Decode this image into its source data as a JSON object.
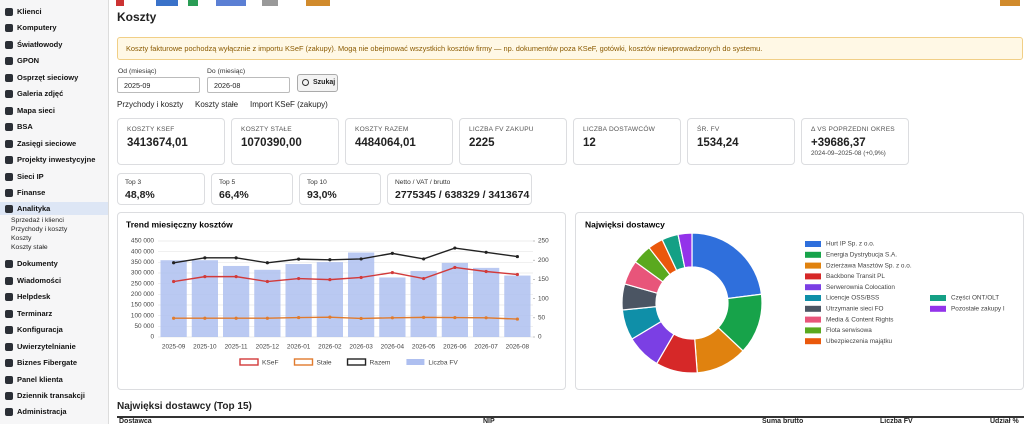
{
  "sidebar": {
    "items": [
      {
        "label": "Klienci"
      },
      {
        "label": "Komputery"
      },
      {
        "label": "Światłowody"
      },
      {
        "label": "GPON"
      },
      {
        "label": "Osprzęt sieciowy"
      },
      {
        "label": "Galeria zdjęć"
      },
      {
        "label": "Mapa sieci"
      },
      {
        "label": "BSA"
      },
      {
        "label": "Zasięgi sieciowe"
      },
      {
        "label": "Projekty inwestycyjne"
      },
      {
        "label": "Sieci IP"
      },
      {
        "label": "Finanse"
      },
      {
        "label": "Analityka",
        "sub": [
          "Sprzedaż i klienci",
          "Przychody i koszty",
          "Koszty",
          "Koszty stałe"
        ]
      },
      {
        "label": "Dokumenty"
      },
      {
        "label": "Wiadomości"
      },
      {
        "label": "Helpdesk"
      },
      {
        "label": "Terminarz"
      },
      {
        "label": "Konfiguracja"
      },
      {
        "label": "Uwierzytelnianie"
      },
      {
        "label": "Biznes Fibergate"
      },
      {
        "label": "Panel klienta"
      },
      {
        "label": "Dziennik transakcji"
      },
      {
        "label": "Administracja"
      }
    ]
  },
  "page": {
    "title": "Koszty",
    "notice": "Koszty fakturowe pochodzą wyłącznie z importu KSeF (zakupy). Mogą nie obejmować wszystkich kosztów firmy — np. dokumentów poza KSeF, gotówki, kosztów niewprowadzonych do systemu.",
    "form": {
      "from_label": "Od (miesiąc)",
      "from_value": "2025-09",
      "to_label": "Do (miesiąc)",
      "to_value": "2026-08",
      "button": "Szukaj"
    },
    "tabs": [
      "Przychody i koszty",
      "Koszty stałe",
      "Import KSeF (zakupy)"
    ],
    "kpis": [
      {
        "label": "KOSZTY KSEF",
        "value": "3413674,01"
      },
      {
        "label": "KOSZTY STAŁE",
        "value": "1070390,00"
      },
      {
        "label": "KOSZTY RAZEM",
        "value": "4484064,01"
      },
      {
        "label": "LICZBA FV ZAKUPU",
        "value": "2225"
      },
      {
        "label": "LICZBA DOSTAWCÓW",
        "value": "12"
      },
      {
        "label": "ŚR. FV",
        "value": "1534,24"
      },
      {
        "label": "Δ VS POPRZEDNI OKRES",
        "value": "+39686,37",
        "note": "2024-09–2025-08 (+0,9%)"
      }
    ],
    "stats": [
      {
        "label": "Top 3",
        "value": "48,8%"
      },
      {
        "label": "Top 5",
        "value": "66,4%"
      },
      {
        "label": "Top 10",
        "value": "93,0%"
      },
      {
        "label": "Netto / VAT / brutto",
        "value": "2775345 / 638329 / 3413674"
      }
    ],
    "table_title": "Najwięksi dostawcy (Top 15)",
    "table_headers": [
      "Dostawca",
      "NIP",
      "Suma brutto",
      "Liczba FV",
      "Udział %"
    ]
  },
  "chart_data": [
    {
      "type": "combo",
      "title": "Trend miesięczny kosztów",
      "categories": [
        "2025-09",
        "2025-10",
        "2025-11",
        "2025-12",
        "2026-01",
        "2026-02",
        "2026-03",
        "2026-04",
        "2026-05",
        "2026-06",
        "2026-07",
        "2026-08"
      ],
      "series": [
        {
          "name": "KSeF",
          "color": "#d23a3a",
          "mark": "line",
          "values": [
            260000,
            283000,
            283000,
            260000,
            274000,
            269000,
            279000,
            302000,
            274000,
            326000,
            307000,
            293000
          ]
        },
        {
          "name": "Stałe",
          "color": "#e07b2e",
          "mark": "line",
          "values": [
            88000,
            88000,
            88000,
            88000,
            91000,
            93000,
            87000,
            90000,
            92000,
            91000,
            90000,
            84000
          ]
        },
        {
          "name": "Razem",
          "color": "#222222",
          "mark": "line",
          "values": [
            348000,
            371000,
            371000,
            348000,
            365000,
            362000,
            366000,
            392000,
            366000,
            417000,
            397000,
            377000
          ]
        },
        {
          "name": "Liczba FV",
          "color": "#aebff0",
          "mark": "bar",
          "axis": "y2",
          "values": [
            200,
            200,
            185,
            175,
            190,
            195,
            220,
            155,
            172,
            193,
            180,
            160
          ]
        }
      ],
      "ylim": [
        0,
        450000
      ],
      "yticks": [
        0,
        {
          "value": 50000,
          "label": "50 000"
        },
        {
          "value": 100000,
          "label": "100 000"
        },
        {
          "value": 150000,
          "label": "150 000"
        },
        {
          "value": 200000,
          "label": "200 000"
        },
        {
          "value": 250000,
          "label": "250 000"
        },
        {
          "value": 300000,
          "label": "300 000"
        },
        {
          "value": 350000,
          "label": "350 000"
        },
        {
          "value": 400000,
          "label": "400 000"
        },
        {
          "value": 450000,
          "label": "450 000"
        }
      ],
      "y2lim": [
        0,
        250
      ],
      "y2ticks": [
        0,
        50,
        100,
        150,
        200,
        250
      ],
      "grid": true
    },
    {
      "type": "pie",
      "title": "Najwięksi dostawcy",
      "donut": true,
      "categories": [
        "Hurt IP Sp. z o.o.",
        "Energia Dystrybucja S.A.",
        "Dzierżawa Masztów Sp. z o.o.",
        "Backbone Transit PL",
        "Serwerownia Colocation",
        "Licencje OSS/BSS",
        "Utrzymanie sieci FO",
        "Media & Content Rights",
        "Flota serwisowa",
        "Ubezpieczenia majątku",
        "Części ONT/OLT",
        "Pozostałe zakupy I"
      ],
      "values": [
        23,
        14,
        11.8,
        9.6,
        8,
        7,
        6,
        5.6,
        4.5,
        3.5,
        3.8,
        3.2
      ],
      "colors": [
        "#2f6fdc",
        "#17a34a",
        "#e0820f",
        "#d62828",
        "#7b3fe4",
        "#0f8fa8",
        "#4b5563",
        "#e8557a",
        "#5aa91f",
        "#ea580c",
        "#14a085",
        "#9333ea"
      ]
    }
  ]
}
